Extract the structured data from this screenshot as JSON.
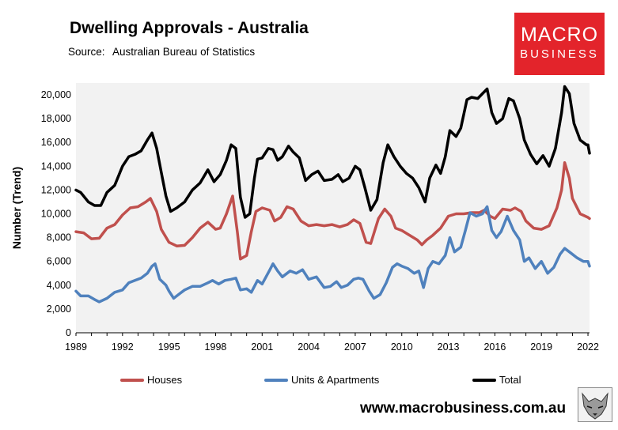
{
  "header": {
    "title": "Dwelling Approvals - Australia",
    "source_label": "Source:",
    "source_value": "Australian Bureau of Statistics"
  },
  "logo": {
    "line1": "MACRO",
    "line2": "BUSINESS",
    "bg_color": "#e3242b"
  },
  "footer": {
    "website": "www.macrobusiness.com.au"
  },
  "chart_data": {
    "type": "line",
    "title": "Dwelling Approvals - Australia",
    "ylabel": "Number (Trend)",
    "xlabel": "",
    "xlim": [
      1989,
      2022.1
    ],
    "ylim": [
      0,
      21000
    ],
    "x_ticks": [
      "1989",
      "1992",
      "1995",
      "1998",
      "2001",
      "2004",
      "2007",
      "2010",
      "2013",
      "2016",
      "2019",
      "2022"
    ],
    "y_ticks": [
      "0",
      "2,000",
      "4,000",
      "6,000",
      "8,000",
      "10,000",
      "12,000",
      "14,000",
      "16,000",
      "18,000",
      "20,000"
    ],
    "grid": false,
    "legend_position": "bottom",
    "series": [
      {
        "name": "Houses",
        "color": "#c0504d",
        "points": [
          [
            1989,
            8500
          ],
          [
            1989.5,
            8400
          ],
          [
            1990,
            7900
          ],
          [
            1990.5,
            7950
          ],
          [
            1991,
            8800
          ],
          [
            1991.5,
            9100
          ],
          [
            1992,
            9900
          ],
          [
            1992.5,
            10500
          ],
          [
            1993,
            10600
          ],
          [
            1993.5,
            11000
          ],
          [
            1993.8,
            11300
          ],
          [
            1994.2,
            10200
          ],
          [
            1994.5,
            8700
          ],
          [
            1995,
            7600
          ],
          [
            1995.5,
            7300
          ],
          [
            1996,
            7350
          ],
          [
            1996.5,
            8000
          ],
          [
            1997,
            8800
          ],
          [
            1997.5,
            9300
          ],
          [
            1998,
            8700
          ],
          [
            1998.3,
            8800
          ],
          [
            1998.7,
            10000
          ],
          [
            1999.1,
            11500
          ],
          [
            1999.4,
            8500
          ],
          [
            1999.6,
            6200
          ],
          [
            2000,
            6500
          ],
          [
            2000.3,
            8500
          ],
          [
            2000.6,
            10200
          ],
          [
            2001,
            10500
          ],
          [
            2001.5,
            10300
          ],
          [
            2001.8,
            9400
          ],
          [
            2002.2,
            9700
          ],
          [
            2002.6,
            10600
          ],
          [
            2003,
            10400
          ],
          [
            2003.5,
            9400
          ],
          [
            2004,
            9000
          ],
          [
            2004.5,
            9100
          ],
          [
            2005,
            9000
          ],
          [
            2005.5,
            9100
          ],
          [
            2006,
            8900
          ],
          [
            2006.5,
            9100
          ],
          [
            2006.9,
            9500
          ],
          [
            2007.3,
            9200
          ],
          [
            2007.7,
            7600
          ],
          [
            2008,
            7500
          ],
          [
            2008.5,
            9600
          ],
          [
            2008.9,
            10400
          ],
          [
            2009.3,
            9800
          ],
          [
            2009.6,
            8800
          ],
          [
            2010,
            8600
          ],
          [
            2010.5,
            8200
          ],
          [
            2011,
            7800
          ],
          [
            2011.3,
            7400
          ],
          [
            2011.6,
            7800
          ],
          [
            2012,
            8200
          ],
          [
            2012.5,
            8800
          ],
          [
            2013,
            9800
          ],
          [
            2013.5,
            10000
          ],
          [
            2014,
            10000
          ],
          [
            2014.5,
            10100
          ],
          [
            2015,
            10100
          ],
          [
            2015.3,
            10300
          ],
          [
            2015.7,
            9800
          ],
          [
            2016,
            9600
          ],
          [
            2016.5,
            10400
          ],
          [
            2017,
            10300
          ],
          [
            2017.3,
            10500
          ],
          [
            2017.7,
            10200
          ],
          [
            2018,
            9400
          ],
          [
            2018.5,
            8800
          ],
          [
            2019,
            8700
          ],
          [
            2019.5,
            9000
          ],
          [
            2020,
            10500
          ],
          [
            2020.3,
            12000
          ],
          [
            2020.5,
            14300
          ],
          [
            2020.8,
            13000
          ],
          [
            2021,
            11300
          ],
          [
            2021.5,
            10000
          ],
          [
            2022,
            9700
          ],
          [
            2022.1,
            9600
          ]
        ]
      },
      {
        "name": "Units & Apartments",
        "color": "#4f81bd",
        "points": [
          [
            1989,
            3500
          ],
          [
            1989.3,
            3100
          ],
          [
            1989.8,
            3100
          ],
          [
            1990.2,
            2800
          ],
          [
            1990.5,
            2600
          ],
          [
            1991,
            2900
          ],
          [
            1991.5,
            3400
          ],
          [
            1992,
            3600
          ],
          [
            1992.4,
            4200
          ],
          [
            1992.8,
            4400
          ],
          [
            1993.2,
            4600
          ],
          [
            1993.6,
            5000
          ],
          [
            1993.9,
            5600
          ],
          [
            1994.1,
            5800
          ],
          [
            1994.4,
            4500
          ],
          [
            1994.8,
            4000
          ],
          [
            1995,
            3500
          ],
          [
            1995.3,
            2900
          ],
          [
            1995.7,
            3300
          ],
          [
            1996,
            3600
          ],
          [
            1996.5,
            3900
          ],
          [
            1997,
            3900
          ],
          [
            1997.5,
            4200
          ],
          [
            1997.8,
            4400
          ],
          [
            1998.2,
            4100
          ],
          [
            1998.6,
            4400
          ],
          [
            1999,
            4500
          ],
          [
            1999.3,
            4600
          ],
          [
            1999.6,
            3600
          ],
          [
            2000,
            3700
          ],
          [
            2000.3,
            3400
          ],
          [
            2000.7,
            4400
          ],
          [
            2001,
            4100
          ],
          [
            2001.5,
            5300
          ],
          [
            2001.7,
            5800
          ],
          [
            2002,
            5200
          ],
          [
            2002.3,
            4700
          ],
          [
            2002.8,
            5200
          ],
          [
            2003.2,
            5000
          ],
          [
            2003.6,
            5300
          ],
          [
            2004,
            4500
          ],
          [
            2004.5,
            4700
          ],
          [
            2005,
            3800
          ],
          [
            2005.4,
            3900
          ],
          [
            2005.8,
            4300
          ],
          [
            2006.1,
            3800
          ],
          [
            2006.5,
            4000
          ],
          [
            2006.9,
            4500
          ],
          [
            2007.2,
            4600
          ],
          [
            2007.5,
            4500
          ],
          [
            2007.9,
            3500
          ],
          [
            2008.2,
            2900
          ],
          [
            2008.6,
            3200
          ],
          [
            2009,
            4200
          ],
          [
            2009.4,
            5500
          ],
          [
            2009.7,
            5800
          ],
          [
            2010,
            5600
          ],
          [
            2010.4,
            5400
          ],
          [
            2010.8,
            5000
          ],
          [
            2011.1,
            5200
          ],
          [
            2011.4,
            3800
          ],
          [
            2011.7,
            5400
          ],
          [
            2012,
            6000
          ],
          [
            2012.4,
            5800
          ],
          [
            2012.8,
            6500
          ],
          [
            2013.1,
            8000
          ],
          [
            2013.4,
            6800
          ],
          [
            2013.8,
            7200
          ],
          [
            2014.1,
            8600
          ],
          [
            2014.4,
            10100
          ],
          [
            2014.8,
            9800
          ],
          [
            2015.2,
            10000
          ],
          [
            2015.5,
            10600
          ],
          [
            2015.8,
            8600
          ],
          [
            2016.1,
            8000
          ],
          [
            2016.4,
            8500
          ],
          [
            2016.8,
            9800
          ],
          [
            2017.2,
            8600
          ],
          [
            2017.6,
            7800
          ],
          [
            2017.9,
            6000
          ],
          [
            2018.2,
            6300
          ],
          [
            2018.6,
            5400
          ],
          [
            2019,
            6000
          ],
          [
            2019.4,
            5000
          ],
          [
            2019.8,
            5500
          ],
          [
            2020.2,
            6600
          ],
          [
            2020.5,
            7100
          ],
          [
            2020.9,
            6700
          ],
          [
            2021.3,
            6300
          ],
          [
            2021.7,
            6000
          ],
          [
            2022,
            6000
          ],
          [
            2022.1,
            5600
          ]
        ]
      },
      {
        "name": "Total",
        "color": "#000000",
        "points": [
          [
            1989,
            12000
          ],
          [
            1989.3,
            11800
          ],
          [
            1989.8,
            11000
          ],
          [
            1990.2,
            10700
          ],
          [
            1990.6,
            10700
          ],
          [
            1991,
            11800
          ],
          [
            1991.5,
            12400
          ],
          [
            1992,
            14000
          ],
          [
            1992.4,
            14800
          ],
          [
            1992.8,
            15000
          ],
          [
            1993.2,
            15300
          ],
          [
            1993.6,
            16200
          ],
          [
            1993.9,
            16800
          ],
          [
            1994.2,
            15500
          ],
          [
            1994.5,
            13500
          ],
          [
            1994.8,
            11500
          ],
          [
            1995.1,
            10200
          ],
          [
            1995.5,
            10500
          ],
          [
            1996,
            11000
          ],
          [
            1996.5,
            12000
          ],
          [
            1997,
            12600
          ],
          [
            1997.5,
            13700
          ],
          [
            1997.9,
            12700
          ],
          [
            1998.3,
            13300
          ],
          [
            1998.7,
            14500
          ],
          [
            1999,
            15800
          ],
          [
            1999.3,
            15500
          ],
          [
            1999.6,
            11400
          ],
          [
            1999.9,
            9700
          ],
          [
            2000.2,
            10000
          ],
          [
            2000.5,
            13000
          ],
          [
            2000.7,
            14600
          ],
          [
            2001,
            14700
          ],
          [
            2001.4,
            15500
          ],
          [
            2001.7,
            15400
          ],
          [
            2002,
            14500
          ],
          [
            2002.3,
            14800
          ],
          [
            2002.7,
            15700
          ],
          [
            2003,
            15200
          ],
          [
            2003.4,
            14700
          ],
          [
            2003.8,
            12800
          ],
          [
            2004.2,
            13300
          ],
          [
            2004.6,
            13600
          ],
          [
            2005,
            12800
          ],
          [
            2005.5,
            12900
          ],
          [
            2005.9,
            13300
          ],
          [
            2006.2,
            12700
          ],
          [
            2006.6,
            13000
          ],
          [
            2007,
            14000
          ],
          [
            2007.3,
            13700
          ],
          [
            2007.6,
            12300
          ],
          [
            2008,
            10300
          ],
          [
            2008.4,
            11200
          ],
          [
            2008.8,
            14300
          ],
          [
            2009.1,
            15800
          ],
          [
            2009.5,
            14800
          ],
          [
            2009.9,
            14000
          ],
          [
            2010.3,
            13400
          ],
          [
            2010.7,
            13000
          ],
          [
            2011.1,
            12200
          ],
          [
            2011.5,
            11000
          ],
          [
            2011.8,
            13000
          ],
          [
            2012.2,
            14100
          ],
          [
            2012.5,
            13400
          ],
          [
            2012.8,
            14800
          ],
          [
            2013.1,
            17000
          ],
          [
            2013.5,
            16500
          ],
          [
            2013.8,
            17200
          ],
          [
            2014.2,
            19600
          ],
          [
            2014.5,
            19800
          ],
          [
            2014.9,
            19700
          ],
          [
            2015.2,
            20100
          ],
          [
            2015.5,
            20500
          ],
          [
            2015.8,
            18500
          ],
          [
            2016.1,
            17600
          ],
          [
            2016.5,
            18000
          ],
          [
            2016.9,
            19700
          ],
          [
            2017.2,
            19500
          ],
          [
            2017.6,
            18000
          ],
          [
            2017.9,
            16200
          ],
          [
            2018.3,
            15000
          ],
          [
            2018.7,
            14200
          ],
          [
            2019.1,
            14900
          ],
          [
            2019.5,
            14000
          ],
          [
            2019.9,
            15500
          ],
          [
            2020.1,
            17000
          ],
          [
            2020.3,
            18500
          ],
          [
            2020.5,
            20700
          ],
          [
            2020.8,
            20100
          ],
          [
            2021.1,
            17600
          ],
          [
            2021.5,
            16200
          ],
          [
            2021.9,
            15800
          ],
          [
            2022,
            15800
          ],
          [
            2022.1,
            15100
          ]
        ]
      }
    ]
  }
}
